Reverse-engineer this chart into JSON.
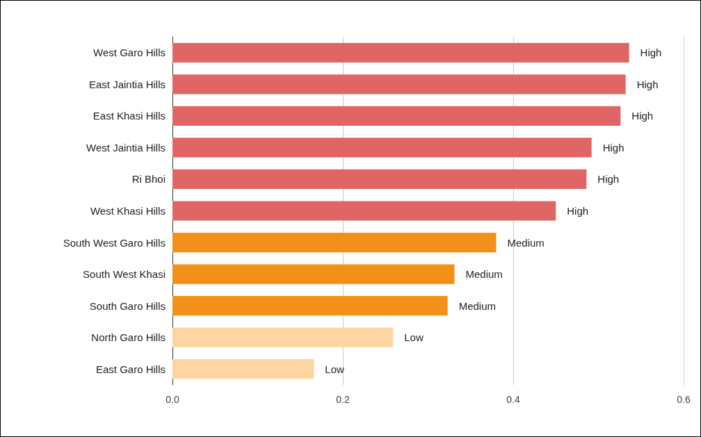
{
  "chart_data": {
    "type": "bar",
    "orientation": "horizontal",
    "categories": [
      "West Garo Hills",
      "East Jaintia Hills",
      "East Khasi Hills",
      "West Jaintia Hills",
      "Ri Bhoi",
      "West Khasi Hills",
      "South West Garo Hills",
      "South West Khasi",
      "South Garo Hills",
      "North Garo Hills",
      "East Garo Hills"
    ],
    "values": [
      0.536,
      0.532,
      0.526,
      0.492,
      0.486,
      0.45,
      0.38,
      0.331,
      0.323,
      0.259,
      0.166
    ],
    "colors": [
      "#e06666",
      "#e06666",
      "#e06666",
      "#e06666",
      "#e06666",
      "#e06666",
      "#f39019",
      "#f39019",
      "#f39019",
      "#fdd5a0",
      "#fdd5a0"
    ],
    "value_labels": [
      "High",
      "High",
      "High",
      "High",
      "High",
      "High",
      "Medium",
      "Medium",
      "Medium",
      "Low",
      "Low"
    ],
    "xlim": [
      0,
      0.6
    ],
    "xticks": [
      {
        "value": 0,
        "label": "0.0"
      },
      0.2,
      0.4,
      0.6
    ],
    "grid": "x"
  }
}
